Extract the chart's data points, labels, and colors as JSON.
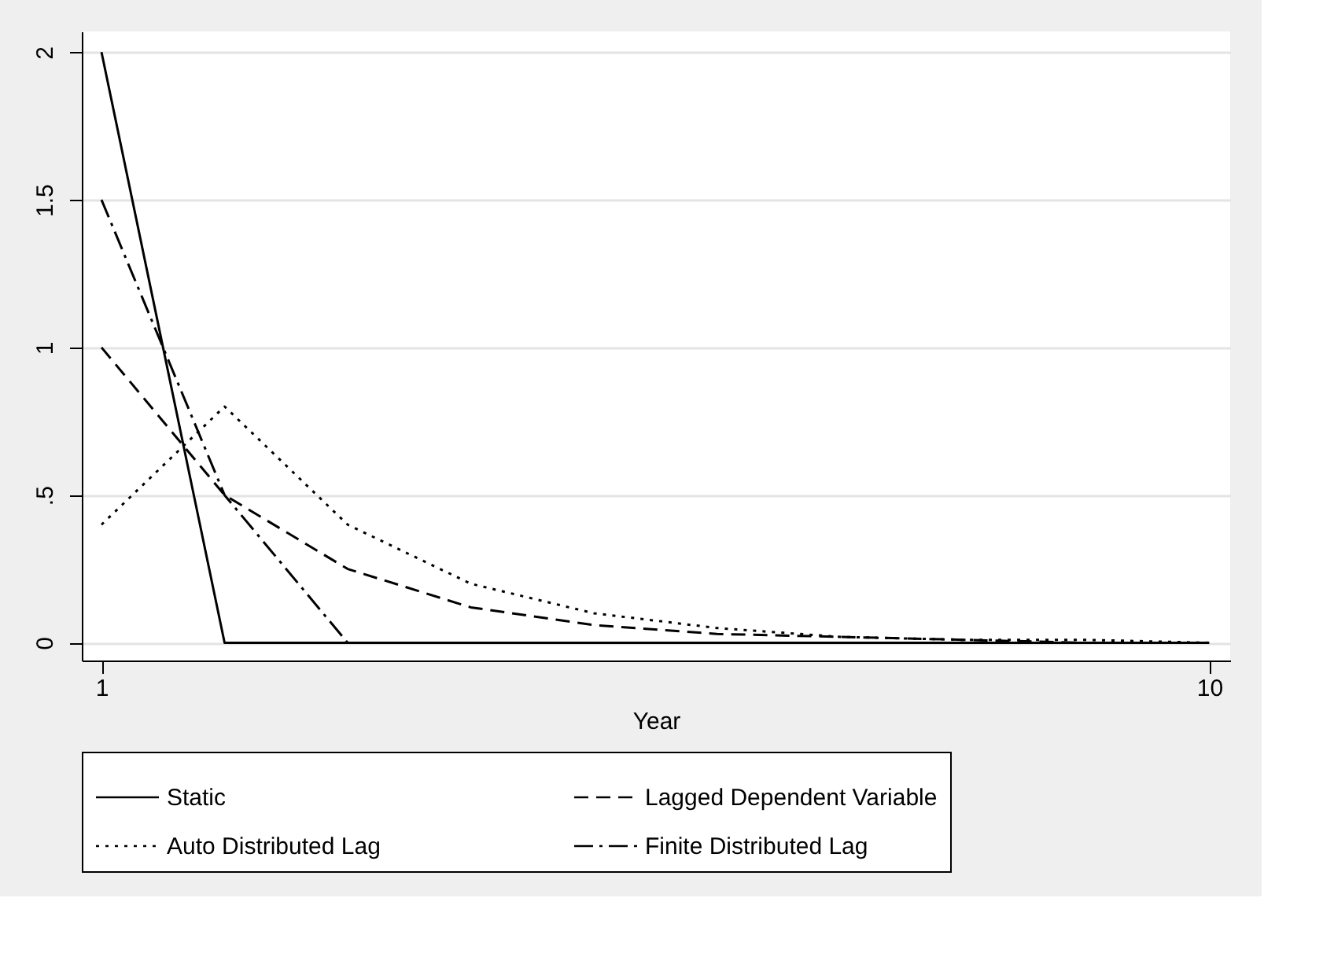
{
  "chart_data": {
    "type": "line",
    "xlabel": "Year",
    "x": [
      1,
      2,
      3,
      4,
      5,
      6,
      7,
      8,
      9,
      10
    ],
    "series": [
      {
        "name": "Static",
        "color": "#000000",
        "line_style": "solid",
        "values": [
          2,
          0,
          0,
          0,
          0,
          0,
          0,
          0,
          0,
          0
        ]
      },
      {
        "name": "Lagged Dependent Variable",
        "color": "#000000",
        "line_style": "dashed",
        "values": [
          1,
          0.5,
          0.25,
          0.12,
          0.06,
          0.03,
          0.02,
          0.01,
          0,
          0
        ]
      },
      {
        "name": "Auto Distributed Lag",
        "color": "#000000",
        "line_style": "dotted",
        "values": [
          0.4,
          0.8,
          0.4,
          0.2,
          0.1,
          0.05,
          0.02,
          0.01,
          0.01,
          0
        ]
      },
      {
        "name": "Finite Distributed Lag",
        "color": "#000000",
        "line_style": "dashdot",
        "values": [
          1.5,
          0.5,
          0,
          0,
          0,
          0,
          0,
          0,
          0,
          0
        ]
      }
    ],
    "xlim": [
      0.84,
      10.17
    ],
    "xticks": [
      1,
      10
    ],
    "ylim": [
      -0.06,
      2.07
    ],
    "yticks": [
      0,
      {
        "value": 0.5,
        "label": ".5"
      },
      1,
      1.5,
      2
    ],
    "grid": "y",
    "legend": "bottom",
    "marker": "none"
  }
}
